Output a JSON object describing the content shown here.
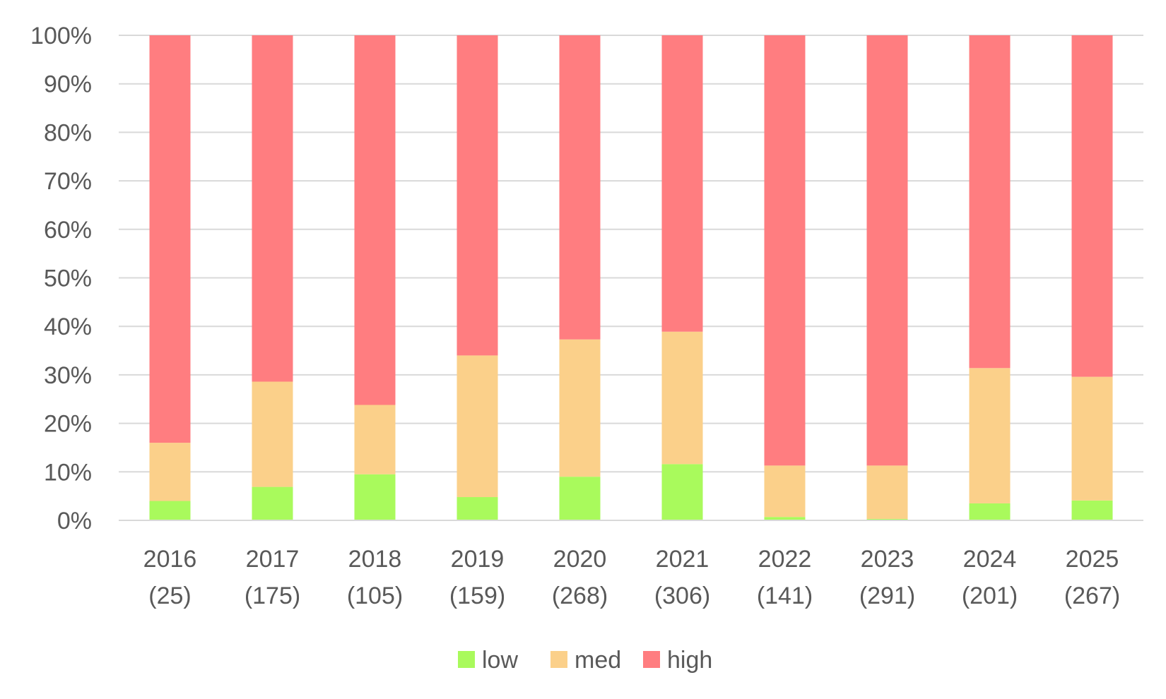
{
  "chart_data": {
    "type": "bar",
    "stacked": true,
    "percent_stacked": true,
    "title": "",
    "xlabel": "",
    "ylabel": "",
    "ylim": [
      0,
      100
    ],
    "y_ticks": [
      "0%",
      "10%",
      "20%",
      "30%",
      "40%",
      "50%",
      "60%",
      "70%",
      "80%",
      "90%",
      "100%"
    ],
    "grid": true,
    "legend_position": "bottom",
    "categories": [
      {
        "year": "2016",
        "count": "(25)"
      },
      {
        "year": "2017",
        "count": "(175)"
      },
      {
        "year": "2018",
        "count": "(105)"
      },
      {
        "year": "2019",
        "count": "(159)"
      },
      {
        "year": "2020",
        "count": "(268)"
      },
      {
        "year": "2021",
        "count": "(306)"
      },
      {
        "year": "2022",
        "count": "(141)"
      },
      {
        "year": "2023",
        "count": "(291)"
      },
      {
        "year": "2024",
        "count": "(201)"
      },
      {
        "year": "2025",
        "count": "(267)"
      }
    ],
    "series": [
      {
        "name": "low",
        "color": "#A9FA5C",
        "values": [
          4.0,
          6.9,
          9.5,
          4.8,
          9.0,
          11.6,
          0.7,
          0.3,
          3.5,
          4.1
        ]
      },
      {
        "name": "med",
        "color": "#FBD08A",
        "values": [
          12.0,
          21.7,
          14.3,
          29.2,
          28.3,
          27.3,
          10.6,
          11.0,
          27.9,
          25.5
        ]
      },
      {
        "name": "high",
        "color": "#FF7D80",
        "values": [
          84.0,
          71.4,
          76.2,
          66.0,
          62.7,
          61.1,
          88.7,
          88.7,
          68.6,
          70.4
        ]
      }
    ]
  }
}
